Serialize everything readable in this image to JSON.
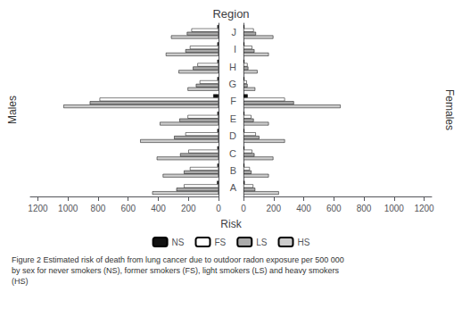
{
  "chart_data": [
    {
      "type": "bar",
      "orientation": "horizontal",
      "title": "Region",
      "ylabel": "Males",
      "categories": [
        "A",
        "B",
        "C",
        "D",
        "E",
        "F",
        "G",
        "H",
        "I",
        "J"
      ],
      "series": [
        {
          "name": "NS",
          "color": "#111111",
          "values": [
            10,
            8,
            8,
            8,
            8,
            35,
            8,
            8,
            8,
            8
          ]
        },
        {
          "name": "FS",
          "color": "#ffffff",
          "values": [
            230,
            190,
            200,
            220,
            205,
            790,
            125,
            140,
            190,
            180
          ]
        },
        {
          "name": "LS",
          "color": "#aaaaaa",
          "values": [
            280,
            230,
            255,
            295,
            260,
            855,
            150,
            170,
            220,
            210
          ]
        },
        {
          "name": "HS",
          "color": "#cccccc",
          "values": [
            440,
            370,
            410,
            520,
            390,
            1030,
            205,
            265,
            350,
            315
          ]
        }
      ],
      "xlim": [
        1250,
        0
      ],
      "xticks": [
        1200,
        1000,
        800,
        600,
        400,
        200,
        0
      ],
      "grid": false,
      "legend": "bottom",
      "tick_labels": "x"
    },
    {
      "type": "bar",
      "orientation": "horizontal",
      "ylabel": "Females",
      "xlabel": "Risk",
      "caption": "Figure 2 Estimated risk of death from lung cancer due to outdoor radon exposure per 500 000\nby sex for never smokers (NS), former smokers (FS), light smokers (LS) and heavy smokers\n(HS)",
      "categories": [
        "A",
        "B",
        "C",
        "D",
        "E",
        "F",
        "G",
        "H",
        "I",
        "J"
      ],
      "series": [
        {
          "name": "NS",
          "color": "#111111",
          "values": [
            8,
            6,
            6,
            6,
            6,
            28,
            6,
            6,
            6,
            6
          ]
        },
        {
          "name": "FS",
          "color": "#ffffff",
          "values": [
            65,
            42,
            58,
            82,
            52,
            275,
            22,
            27,
            58,
            68
          ]
        },
        {
          "name": "LS",
          "color": "#aaaaaa",
          "values": [
            78,
            53,
            73,
            105,
            68,
            335,
            27,
            32,
            73,
            83
          ]
        },
        {
          "name": "HS",
          "color": "#cccccc",
          "values": [
            235,
            168,
            198,
            275,
            168,
            645,
            78,
            93,
            168,
            198
          ]
        }
      ],
      "xlim": [
        0,
        1250
      ],
      "xticks": [
        0,
        200,
        400,
        600,
        800,
        1000,
        1200
      ],
      "grid": false
    }
  ]
}
